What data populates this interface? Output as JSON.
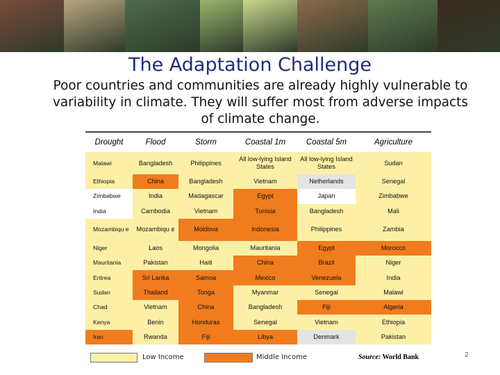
{
  "slide": {
    "title": "The Adaptation Challenge",
    "subtitle": "Poor countries and communities are already highly vulnerable to variability in climate. They will suffer most from adverse impacts of climate change.",
    "page_number": "2"
  },
  "banner": {
    "photos": [
      {
        "name": "woman-portrait-photo",
        "color": "#7a4a3a"
      },
      {
        "name": "power-lines-photo",
        "color": "#b9a57f"
      },
      {
        "name": "woman-with-solar-panel-photo",
        "color": "#4d6b4a"
      },
      {
        "name": "plant-stalk-photo",
        "color": "#9bb36a"
      },
      {
        "name": "leaf-closeup-photo",
        "color": "#c8d88a"
      },
      {
        "name": "children-photo",
        "color": "#8a6a4a"
      },
      {
        "name": "waterfall-photo",
        "color": "#5f7a4f"
      },
      {
        "name": "boy-portrait-photo",
        "color": "#3b2a20"
      }
    ]
  },
  "table": {
    "headers": [
      "Drought",
      "Flood",
      "Storm",
      "Coastal 1m",
      "Coastal 5m",
      "Agriculture"
    ],
    "rows": [
      {
        "tall": true,
        "cells": [
          [
            "Malawi",
            "y"
          ],
          [
            "Bangladesh",
            "y"
          ],
          [
            "Philippines",
            "y"
          ],
          [
            "All low-lying Island States",
            "y"
          ],
          [
            "All low-lying Island States",
            "y"
          ],
          [
            "Sudan",
            "y"
          ]
        ]
      },
      {
        "tall": false,
        "cells": [
          [
            "Ethiopia",
            "y"
          ],
          [
            "China",
            "o"
          ],
          [
            "Bangladesh",
            "y"
          ],
          [
            "Vietnam",
            "y"
          ],
          [
            "Netherlands",
            "g"
          ],
          [
            "Senegal",
            "y"
          ]
        ]
      },
      {
        "tall": false,
        "cells": [
          [
            "Zimbabwe",
            "w"
          ],
          [
            "India",
            "y"
          ],
          [
            "Madagascar",
            "y"
          ],
          [
            "Egypt",
            "o"
          ],
          [
            "Japan",
            "w"
          ],
          [
            "Zimbabwe",
            "y"
          ]
        ]
      },
      {
        "tall": false,
        "cells": [
          [
            "India",
            "w"
          ],
          [
            "Cambodia",
            "y"
          ],
          [
            "Vietnam",
            "y"
          ],
          [
            "Tunisia",
            "o"
          ],
          [
            "Bangladesh",
            "y"
          ],
          [
            "Mali",
            "y"
          ]
        ]
      },
      {
        "tall": true,
        "cells": [
          [
            "Mozambiqu e",
            "y"
          ],
          [
            "Mozambiqu e",
            "y"
          ],
          [
            "Moldova",
            "o"
          ],
          [
            "Indonesia",
            "o"
          ],
          [
            "Philippines",
            "y"
          ],
          [
            "Zambia",
            "y"
          ]
        ]
      },
      {
        "tall": false,
        "cells": [
          [
            "Niger",
            "y"
          ],
          [
            "Laos",
            "y"
          ],
          [
            "Mongolia",
            "y"
          ],
          [
            "Mauritania",
            "y"
          ],
          [
            "Egypt",
            "o"
          ],
          [
            "Morocco",
            "o"
          ]
        ]
      },
      {
        "tall": false,
        "cells": [
          [
            "Mauritania",
            "y"
          ],
          [
            "Pakistan",
            "y"
          ],
          [
            "Haiti",
            "y"
          ],
          [
            "China",
            "o"
          ],
          [
            "Brazil",
            "o"
          ],
          [
            "Niger",
            "y"
          ]
        ]
      },
      {
        "tall": false,
        "cells": [
          [
            "Eritrea",
            "y"
          ],
          [
            "Sri Lanka",
            "o"
          ],
          [
            "Samoa",
            "o"
          ],
          [
            "Mexico",
            "o"
          ],
          [
            "Venezuela",
            "o"
          ],
          [
            "India",
            "y"
          ]
        ]
      },
      {
        "tall": false,
        "cells": [
          [
            "Sudan",
            "y"
          ],
          [
            "Thailand",
            "o"
          ],
          [
            "Tonga",
            "o"
          ],
          [
            "Myanmar",
            "y"
          ],
          [
            "Senegal",
            "y"
          ],
          [
            "Malawi",
            "y"
          ]
        ]
      },
      {
        "tall": false,
        "cells": [
          [
            "Chad",
            "y"
          ],
          [
            "Vietnam",
            "y"
          ],
          [
            "China",
            "o"
          ],
          [
            "Bangladesh",
            "y"
          ],
          [
            "Fiji",
            "o"
          ],
          [
            "Algeria",
            "o"
          ]
        ]
      },
      {
        "tall": false,
        "cells": [
          [
            "Kenya",
            "y"
          ],
          [
            "Benin",
            "y"
          ],
          [
            "Honduras",
            "o"
          ],
          [
            "Senegal",
            "y"
          ],
          [
            "Vietnam",
            "y"
          ],
          [
            "Ethiopia",
            "y"
          ]
        ]
      },
      {
        "tall": false,
        "cells": [
          [
            "Iran",
            "o"
          ],
          [
            "Rwanda",
            "y"
          ],
          [
            "Fiji",
            "o"
          ],
          [
            "Libya",
            "o"
          ],
          [
            "Denmark",
            "g"
          ],
          [
            "Pakistan",
            "y"
          ]
        ]
      }
    ]
  },
  "legend": {
    "low_label": "Low Income",
    "mid_label": "Middle Income",
    "low_color": "#fdf0a6",
    "mid_color": "#f07c1e"
  },
  "source": {
    "prefix": "Source:",
    "name": "World Bank"
  }
}
